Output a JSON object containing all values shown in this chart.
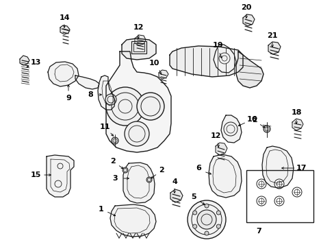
{
  "bg_color": "#ffffff",
  "fig_width": 4.89,
  "fig_height": 3.6,
  "dpi": 100,
  "line_color": "#1a1a1a",
  "label_fontsize": 8,
  "label_color": "#000000"
}
